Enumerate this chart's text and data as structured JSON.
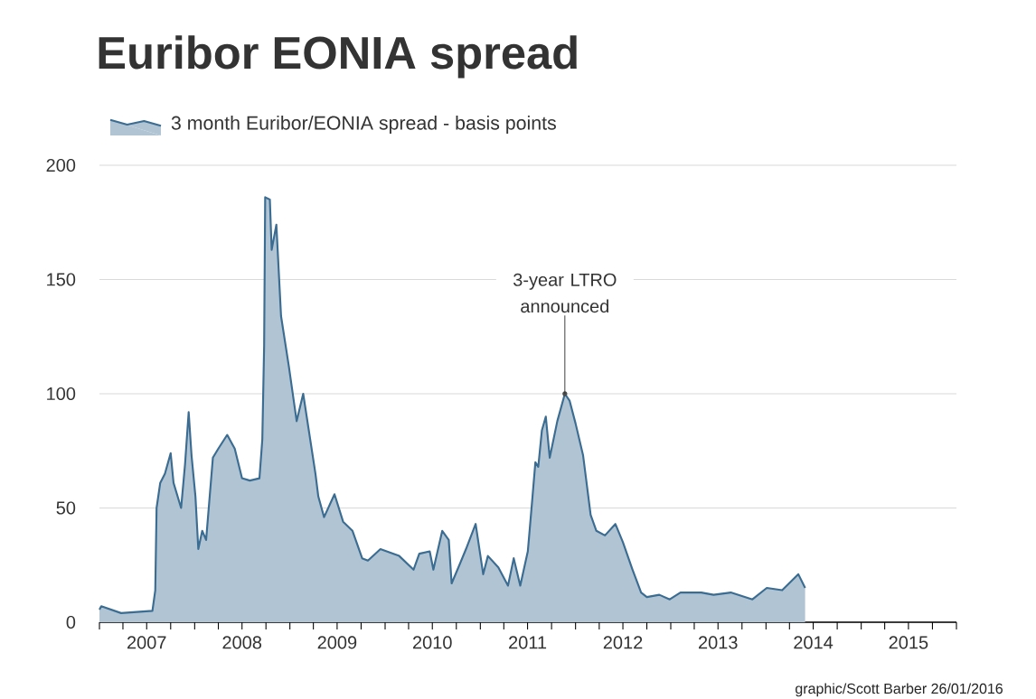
{
  "chart_data": {
    "type": "area",
    "title": "Euribor EONIA spread",
    "legend": "top left",
    "grid": "y",
    "xlim": [
      "2007-01-01",
      "2016-01-01"
    ],
    "xticks": [
      {
        "value": "2007-01-01",
        "label": null
      },
      {
        "value": "2007-04-01",
        "label": null
      },
      {
        "value": "2007-07-01",
        "label": "2007"
      },
      {
        "value": "2007-10-01",
        "label": null
      },
      {
        "value": "2008-01-01",
        "label": null
      },
      {
        "value": "2008-04-01",
        "label": null
      },
      {
        "value": "2008-07-01",
        "label": "2008"
      },
      {
        "value": "2008-10-01",
        "label": null
      },
      {
        "value": "2009-01-01",
        "label": null
      },
      {
        "value": "2009-04-01",
        "label": null
      },
      {
        "value": "2009-07-01",
        "label": "2009"
      },
      {
        "value": "2009-10-01",
        "label": null
      },
      {
        "value": "2010-01-01",
        "label": null
      },
      {
        "value": "2010-04-01",
        "label": null
      },
      {
        "value": "2010-07-01",
        "label": "2010"
      },
      {
        "value": "2010-10-01",
        "label": null
      },
      {
        "value": "2011-01-01",
        "label": null
      },
      {
        "value": "2011-04-01",
        "label": null
      },
      {
        "value": "2011-07-01",
        "label": "2011"
      },
      {
        "value": "2011-10-01",
        "label": null
      },
      {
        "value": "2012-01-01",
        "label": null
      },
      {
        "value": "2012-04-01",
        "label": null
      },
      {
        "value": "2012-07-01",
        "label": "2012"
      },
      {
        "value": "2012-10-01",
        "label": null
      },
      {
        "value": "2013-01-01",
        "label": null
      },
      {
        "value": "2013-04-01",
        "label": null
      },
      {
        "value": "2013-07-01",
        "label": "2013"
      },
      {
        "value": "2013-10-01",
        "label": null
      },
      {
        "value": "2014-01-01",
        "label": null
      },
      {
        "value": "2014-04-01",
        "label": null
      },
      {
        "value": "2014-07-01",
        "label": "2014"
      },
      {
        "value": "2014-10-01",
        "label": null
      },
      {
        "value": "2015-01-01",
        "label": null
      },
      {
        "value": "2015-04-01",
        "label": null
      },
      {
        "value": "2015-07-01",
        "label": "2015"
      },
      {
        "value": "2015-10-01",
        "label": null
      },
      {
        "value": "2016-01-01",
        "label": null
      }
    ],
    "ylim": [
      0,
      200
    ],
    "yticks": [
      0,
      50,
      100,
      150,
      200
    ],
    "x": [
      "2007-01-01",
      "2007-01-08",
      "2007-03-25",
      "2007-07-23",
      "2007-08-03",
      "2007-08-08",
      "2007-08-22",
      "2007-09-09",
      "2007-10-01",
      "2007-10-12",
      "2007-11-10",
      "2007-11-25",
      "2007-12-09",
      "2007-12-20",
      "2008-01-04",
      "2008-01-15",
      "2008-01-30",
      "2008-02-14",
      "2008-03-11",
      "2008-04-01",
      "2008-05-05",
      "2008-06-03",
      "2008-07-01",
      "2008-07-31",
      "2008-09-06",
      "2008-09-17",
      "2008-09-24",
      "2008-09-28",
      "2008-10-16",
      "2008-10-23",
      "2008-11-10",
      "2008-11-28",
      "2008-12-28",
      "2009-01-27",
      "2009-02-21",
      "2009-04-09",
      "2009-04-20",
      "2009-05-12",
      "2009-06-21",
      "2009-07-24",
      "2009-08-29",
      "2009-10-05",
      "2009-10-27",
      "2009-12-14",
      "2010-02-24",
      "2010-04-20",
      "2010-05-12",
      "2010-06-21",
      "2010-07-05",
      "2010-08-08",
      "2010-09-02",
      "2010-09-13",
      "2010-10-09",
      "2010-11-07",
      "2010-12-14",
      "2011-01-12",
      "2011-01-30",
      "2011-03-11",
      "2011-04-17",
      "2011-05-09",
      "2011-06-03",
      "2011-07-02",
      "2011-07-20",
      "2011-07-31",
      "2011-08-11",
      "2011-08-25",
      "2011-09-09",
      "2011-09-24",
      "2011-10-23",
      "2011-11-21",
      "2011-12-09",
      "2012-01-01",
      "2012-01-30",
      "2012-02-28",
      "2012-03-21",
      "2012-04-23",
      "2012-06-02",
      "2012-07-01",
      "2012-08-07",
      "2012-09-09",
      "2012-10-01",
      "2012-11-18",
      "2012-12-28",
      "2013-02-07",
      "2013-04-28",
      "2013-06-14",
      "2013-08-19",
      "2013-11-10",
      "2014-01-04",
      "2014-03-04",
      "2014-05-05",
      "2014-05-31"
    ],
    "series": [
      {
        "name": "3 month Euribor/EONIA spread - basis points",
        "color": "#3b6c91",
        "values": [
          5.5,
          7,
          4,
          5,
          14,
          50,
          61,
          65,
          74,
          61,
          50,
          69,
          92,
          73,
          55,
          32,
          40,
          36,
          72,
          76,
          82,
          76,
          63,
          62,
          63,
          80,
          121,
          186,
          185,
          163,
          174,
          134,
          112,
          88,
          100,
          65,
          55,
          46,
          56,
          44,
          40,
          28,
          27,
          32,
          29,
          23,
          30,
          31,
          23,
          40,
          36,
          17,
          24,
          32,
          43,
          21,
          29,
          24,
          16,
          28,
          16,
          31,
          55,
          70,
          68,
          84,
          90,
          72,
          88,
          100,
          97,
          87,
          73,
          47,
          40,
          38,
          43,
          35,
          23,
          13,
          11,
          12,
          10,
          13,
          13,
          12,
          13,
          10,
          15,
          14,
          21,
          15
        ]
      }
    ],
    "annotations": [
      {
        "text": "3-year LTRO announced",
        "x": "2011-11-21",
        "y": 100
      },
      "graphic/Scott Barber 26/01/2016"
    ]
  }
}
